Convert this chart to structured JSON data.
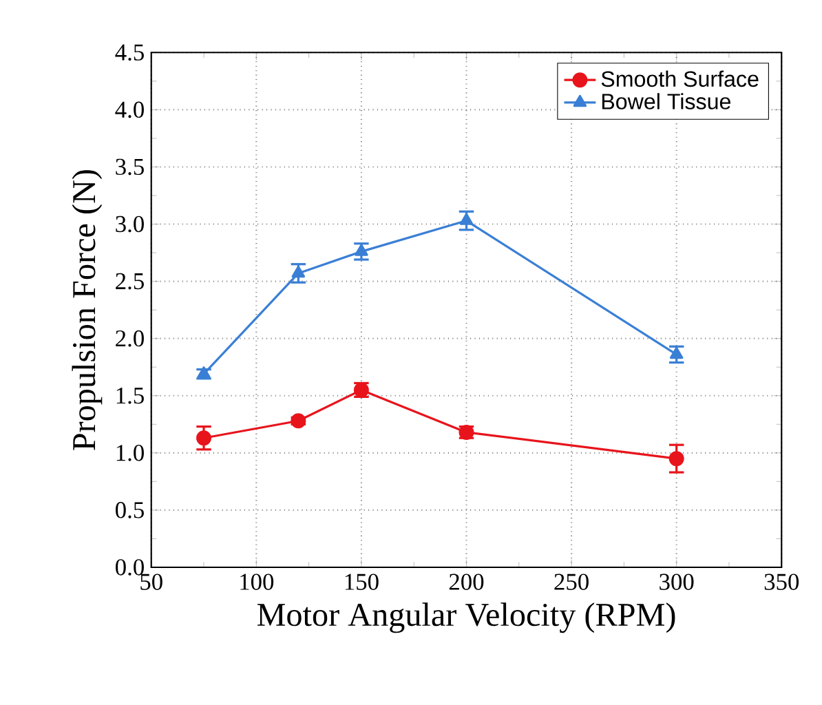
{
  "chart_data": {
    "type": "line",
    "xlabel": "Motor Angular Velocity (RPM)",
    "ylabel": "Propulsion Force (N)",
    "x": [
      75,
      120,
      150,
      200,
      300
    ],
    "series": [
      {
        "name": "Smooth Surface",
        "color": "#e8141c",
        "marker": "circle",
        "values": [
          1.13,
          1.28,
          1.55,
          1.18,
          0.95
        ],
        "errors": [
          0.1,
          0.03,
          0.06,
          0.05,
          0.12
        ]
      },
      {
        "name": "Bowel Tissue",
        "color": "#3a7fd5",
        "marker": "triangle",
        "values": [
          1.69,
          2.57,
          2.76,
          3.03,
          1.86
        ],
        "errors": [
          0.04,
          0.08,
          0.07,
          0.08,
          0.07
        ]
      }
    ],
    "xlim": [
      50,
      350
    ],
    "xticks": [
      50,
      100,
      150,
      200,
      250,
      300,
      350
    ],
    "ylim": [
      0,
      4.5
    ],
    "yticks": [
      {
        "value": 0,
        "label": "0.0"
      },
      {
        "value": 0.5,
        "label": "0.5"
      },
      {
        "value": 1,
        "label": "1.0"
      },
      {
        "value": 1.5,
        "label": "1.5"
      },
      {
        "value": 2,
        "label": "2.0"
      },
      {
        "value": 2.5,
        "label": "2.5"
      },
      {
        "value": 3,
        "label": "3.0"
      },
      {
        "value": 3.5,
        "label": "3.5"
      },
      {
        "value": 4,
        "label": "4.0"
      },
      {
        "value": 4.5,
        "label": "4.5"
      }
    ],
    "grid": true,
    "legend": "top right",
    "line_style": "solid"
  }
}
